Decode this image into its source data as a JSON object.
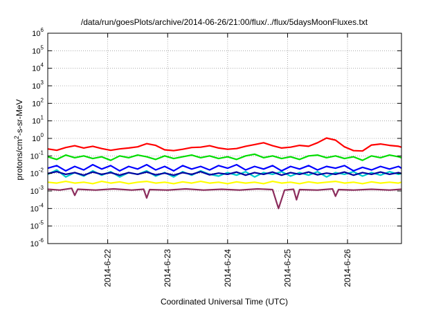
{
  "chart_data": {
    "type": "line",
    "title": "/data/run/goesPlots/archive/2014-06-26/21:00/flux/../flux/5daysMoonFluxes.txt",
    "xlabel": "Coordinated Universal Time (UTC)",
    "ylabel_prefix": "protons/cm",
    "ylabel_sup": "2",
    "ylabel_suffix": "-s-sr-MeV",
    "yscale": "log",
    "ylim": [
      1e-06,
      1000000.0
    ],
    "xlim": [
      1.0,
      6.9
    ],
    "grid": true,
    "x_ticks": [
      {
        "value": 2,
        "label": "2014-6-22"
      },
      {
        "value": 3,
        "label": "2014-6-23"
      },
      {
        "value": 4,
        "label": "2014-6-24"
      },
      {
        "value": 5,
        "label": "2014-6-25"
      },
      {
        "value": 6,
        "label": "2014-6-26"
      }
    ],
    "y_ticks": [
      {
        "exp": -6,
        "base": "10",
        "sup": "-6"
      },
      {
        "exp": -5,
        "base": "10",
        "sup": "-5"
      },
      {
        "exp": -4,
        "base": "10",
        "sup": "-4"
      },
      {
        "exp": -3,
        "base": "10",
        "sup": "-3"
      },
      {
        "exp": -2,
        "base": "10",
        "sup": "-2"
      },
      {
        "exp": -1,
        "base": "10",
        "sup": "-1"
      },
      {
        "exp": 0,
        "base": "10",
        "sup": "0"
      },
      {
        "exp": 1,
        "base": "10",
        "sup": "1"
      },
      {
        "exp": 2,
        "base": "10",
        "sup": "2"
      },
      {
        "exp": 3,
        "base": "10",
        "sup": "3"
      },
      {
        "exp": 4,
        "base": "10",
        "sup": "4"
      },
      {
        "exp": 5,
        "base": "10",
        "sup": "5"
      },
      {
        "exp": 6,
        "base": "10",
        "sup": "6"
      }
    ],
    "series": [
      {
        "color": "#ff0000",
        "values": [
          [
            1.0,
            -0.6
          ],
          [
            1.15,
            -0.68
          ],
          [
            1.3,
            -0.52
          ],
          [
            1.45,
            -0.42
          ],
          [
            1.6,
            -0.55
          ],
          [
            1.75,
            -0.45
          ],
          [
            1.9,
            -0.58
          ],
          [
            2.05,
            -0.68
          ],
          [
            2.2,
            -0.6
          ],
          [
            2.35,
            -0.55
          ],
          [
            2.5,
            -0.48
          ],
          [
            2.65,
            -0.3
          ],
          [
            2.8,
            -0.4
          ],
          [
            2.95,
            -0.65
          ],
          [
            3.1,
            -0.7
          ],
          [
            3.25,
            -0.62
          ],
          [
            3.4,
            -0.52
          ],
          [
            3.55,
            -0.5
          ],
          [
            3.7,
            -0.42
          ],
          [
            3.85,
            -0.55
          ],
          [
            4.0,
            -0.62
          ],
          [
            4.15,
            -0.58
          ],
          [
            4.3,
            -0.45
          ],
          [
            4.45,
            -0.35
          ],
          [
            4.6,
            -0.25
          ],
          [
            4.75,
            -0.42
          ],
          [
            4.9,
            -0.55
          ],
          [
            5.05,
            -0.5
          ],
          [
            5.2,
            -0.4
          ],
          [
            5.35,
            -0.45
          ],
          [
            5.5,
            -0.25
          ],
          [
            5.65,
            0.02
          ],
          [
            5.8,
            -0.1
          ],
          [
            5.95,
            -0.48
          ],
          [
            6.1,
            -0.7
          ],
          [
            6.25,
            -0.72
          ],
          [
            6.4,
            -0.38
          ],
          [
            6.55,
            -0.32
          ],
          [
            6.7,
            -0.4
          ],
          [
            6.85,
            -0.45
          ],
          [
            6.9,
            -0.5
          ]
        ]
      },
      {
        "color": "#00dd00",
        "values": [
          [
            1.0,
            -1.05
          ],
          [
            1.15,
            -1.2
          ],
          [
            1.3,
            -0.95
          ],
          [
            1.45,
            -1.1
          ],
          [
            1.6,
            -1.0
          ],
          [
            1.75,
            -1.15
          ],
          [
            1.9,
            -1.05
          ],
          [
            2.05,
            -1.25
          ],
          [
            2.2,
            -1.0
          ],
          [
            2.35,
            -1.1
          ],
          [
            2.5,
            -0.95
          ],
          [
            2.65,
            -1.05
          ],
          [
            2.8,
            -1.2
          ],
          [
            2.95,
            -1.0
          ],
          [
            3.1,
            -1.15
          ],
          [
            3.25,
            -1.05
          ],
          [
            3.4,
            -0.95
          ],
          [
            3.55,
            -1.1
          ],
          [
            3.7,
            -1.0
          ],
          [
            3.85,
            -1.15
          ],
          [
            4.0,
            -1.05
          ],
          [
            4.15,
            -1.2
          ],
          [
            4.3,
            -1.0
          ],
          [
            4.45,
            -0.9
          ],
          [
            4.6,
            -1.1
          ],
          [
            4.75,
            -1.0
          ],
          [
            4.9,
            -1.15
          ],
          [
            5.05,
            -1.05
          ],
          [
            5.2,
            -1.2
          ],
          [
            5.35,
            -1.0
          ],
          [
            5.5,
            -0.95
          ],
          [
            5.65,
            -1.1
          ],
          [
            5.8,
            -1.0
          ],
          [
            5.95,
            -1.15
          ],
          [
            6.1,
            -1.05
          ],
          [
            6.25,
            -1.25
          ],
          [
            6.4,
            -1.0
          ],
          [
            6.55,
            -1.1
          ],
          [
            6.7,
            -0.95
          ],
          [
            6.85,
            -1.05
          ],
          [
            6.9,
            -1.1
          ]
        ]
      },
      {
        "color": "#00cccc",
        "values": [
          [
            1.0,
            -2.05
          ],
          [
            1.15,
            -1.8
          ],
          [
            1.3,
            -2.2
          ],
          [
            1.45,
            -1.95
          ],
          [
            1.6,
            -2.15
          ],
          [
            1.75,
            -1.85
          ],
          [
            1.9,
            -2.1
          ],
          [
            2.05,
            -1.9
          ],
          [
            2.2,
            -2.2
          ],
          [
            2.35,
            -1.95
          ],
          [
            2.5,
            -2.05
          ],
          [
            2.65,
            -1.85
          ],
          [
            2.8,
            -2.15
          ],
          [
            2.95,
            -1.95
          ],
          [
            3.1,
            -2.2
          ],
          [
            3.25,
            -1.9
          ],
          [
            3.4,
            -2.1
          ],
          [
            3.55,
            -1.85
          ],
          [
            3.7,
            -2.05
          ],
          [
            3.85,
            -2.15
          ],
          [
            4.0,
            -1.95
          ],
          [
            4.15,
            -2.1
          ],
          [
            4.3,
            -1.9
          ],
          [
            4.45,
            -2.2
          ],
          [
            4.6,
            -1.95
          ],
          [
            4.75,
            -2.05
          ],
          [
            4.9,
            -1.9
          ],
          [
            5.05,
            -2.15
          ],
          [
            5.2,
            -1.95
          ],
          [
            5.35,
            -2.1
          ],
          [
            5.5,
            -1.9
          ],
          [
            5.65,
            -2.2
          ],
          [
            5.8,
            -1.95
          ],
          [
            5.95,
            -2.05
          ],
          [
            6.1,
            -1.9
          ],
          [
            6.25,
            -2.15
          ],
          [
            6.4,
            -1.95
          ],
          [
            6.55,
            -2.1
          ],
          [
            6.7,
            -1.9
          ],
          [
            6.85,
            -2.05
          ],
          [
            6.9,
            -2.0
          ]
        ]
      },
      {
        "color": "#0000ff",
        "values": [
          [
            1.0,
            -1.7
          ],
          [
            1.15,
            -1.55
          ],
          [
            1.3,
            -1.85
          ],
          [
            1.45,
            -1.6
          ],
          [
            1.6,
            -1.8
          ],
          [
            1.75,
            -1.5
          ],
          [
            1.9,
            -1.75
          ],
          [
            2.05,
            -1.55
          ],
          [
            2.2,
            -1.85
          ],
          [
            2.35,
            -1.6
          ],
          [
            2.5,
            -1.75
          ],
          [
            2.65,
            -1.5
          ],
          [
            2.8,
            -1.8
          ],
          [
            2.95,
            -1.6
          ],
          [
            3.1,
            -1.85
          ],
          [
            3.25,
            -1.55
          ],
          [
            3.4,
            -1.75
          ],
          [
            3.55,
            -1.6
          ],
          [
            3.7,
            -1.8
          ],
          [
            3.85,
            -1.55
          ],
          [
            4.0,
            -1.7
          ],
          [
            4.15,
            -1.5
          ],
          [
            4.3,
            -1.8
          ],
          [
            4.45,
            -1.6
          ],
          [
            4.6,
            -1.75
          ],
          [
            4.75,
            -1.55
          ],
          [
            4.9,
            -1.85
          ],
          [
            5.05,
            -1.6
          ],
          [
            5.2,
            -1.75
          ],
          [
            5.35,
            -1.55
          ],
          [
            5.5,
            -1.8
          ],
          [
            5.65,
            -1.6
          ],
          [
            5.8,
            -1.7
          ],
          [
            5.95,
            -1.55
          ],
          [
            6.1,
            -1.85
          ],
          [
            6.25,
            -1.65
          ],
          [
            6.4,
            -1.8
          ],
          [
            6.55,
            -1.6
          ],
          [
            6.7,
            -1.75
          ],
          [
            6.85,
            -1.6
          ],
          [
            6.9,
            -1.7
          ]
        ]
      },
      {
        "color": "#0000a0",
        "values": [
          [
            1.0,
            -2.0
          ],
          [
            1.15,
            -1.9
          ],
          [
            1.3,
            -2.05
          ],
          [
            1.45,
            -1.95
          ],
          [
            1.6,
            -2.1
          ],
          [
            1.75,
            -1.92
          ],
          [
            1.9,
            -2.05
          ],
          [
            2.05,
            -1.95
          ],
          [
            2.2,
            -2.1
          ],
          [
            2.35,
            -1.95
          ],
          [
            2.5,
            -2.05
          ],
          [
            2.65,
            -1.92
          ],
          [
            2.8,
            -2.08
          ],
          [
            2.95,
            -1.98
          ],
          [
            3.1,
            -2.1
          ],
          [
            3.25,
            -1.95
          ],
          [
            3.4,
            -2.05
          ],
          [
            3.55,
            -1.9
          ],
          [
            3.7,
            -2.08
          ],
          [
            3.85,
            -1.98
          ],
          [
            4.0,
            -2.05
          ],
          [
            4.15,
            -1.92
          ],
          [
            4.3,
            -2.1
          ],
          [
            4.45,
            -1.95
          ],
          [
            4.6,
            -2.05
          ],
          [
            4.75,
            -1.92
          ],
          [
            4.9,
            -2.1
          ],
          [
            5.05,
            -1.95
          ],
          [
            5.2,
            -2.05
          ],
          [
            5.35,
            -1.92
          ],
          [
            5.5,
            -2.08
          ],
          [
            5.65,
            -1.98
          ],
          [
            5.8,
            -2.05
          ],
          [
            5.95,
            -1.92
          ],
          [
            6.1,
            -2.1
          ],
          [
            6.25,
            -1.95
          ],
          [
            6.4,
            -2.05
          ],
          [
            6.55,
            -1.92
          ],
          [
            6.7,
            -2.05
          ],
          [
            6.85,
            -1.95
          ],
          [
            6.9,
            -2.0
          ]
        ]
      },
      {
        "color": "#ffff00",
        "values": [
          [
            1.0,
            -2.5
          ],
          [
            1.15,
            -2.55
          ],
          [
            1.3,
            -2.45
          ],
          [
            1.45,
            -2.55
          ],
          [
            1.6,
            -2.5
          ],
          [
            1.75,
            -2.58
          ],
          [
            1.9,
            -2.45
          ],
          [
            2.05,
            -2.55
          ],
          [
            2.2,
            -2.48
          ],
          [
            2.35,
            -2.58
          ],
          [
            2.5,
            -2.5
          ],
          [
            2.65,
            -2.45
          ],
          [
            2.8,
            -2.55
          ],
          [
            2.95,
            -2.5
          ],
          [
            3.1,
            -2.58
          ],
          [
            3.25,
            -2.48
          ],
          [
            3.4,
            -2.55
          ],
          [
            3.55,
            -2.45
          ],
          [
            3.7,
            -2.55
          ],
          [
            3.85,
            -2.5
          ],
          [
            4.0,
            -2.58
          ],
          [
            4.15,
            -2.48
          ],
          [
            4.3,
            -2.55
          ],
          [
            4.45,
            -2.5
          ],
          [
            4.6,
            -2.58
          ],
          [
            4.75,
            -2.45
          ],
          [
            4.9,
            -2.55
          ],
          [
            5.05,
            -2.5
          ],
          [
            5.2,
            -2.58
          ],
          [
            5.35,
            -2.48
          ],
          [
            5.5,
            -2.55
          ],
          [
            5.65,
            -2.5
          ],
          [
            5.8,
            -2.45
          ],
          [
            5.95,
            -2.55
          ],
          [
            6.1,
            -2.5
          ],
          [
            6.25,
            -2.58
          ],
          [
            6.4,
            -2.48
          ],
          [
            6.55,
            -2.55
          ],
          [
            6.7,
            -2.5
          ],
          [
            6.85,
            -2.55
          ],
          [
            6.9,
            -2.5
          ]
        ]
      },
      {
        "color": "#8b2c5c",
        "values": [
          [
            1.0,
            -2.9
          ],
          [
            1.2,
            -2.95
          ],
          [
            1.4,
            -2.85
          ],
          [
            1.45,
            -3.25
          ],
          [
            1.5,
            -2.9
          ],
          [
            1.8,
            -2.95
          ],
          [
            2.1,
            -2.88
          ],
          [
            2.4,
            -2.95
          ],
          [
            2.6,
            -2.9
          ],
          [
            2.65,
            -3.4
          ],
          [
            2.7,
            -2.92
          ],
          [
            3.0,
            -2.95
          ],
          [
            3.3,
            -2.88
          ],
          [
            3.6,
            -2.95
          ],
          [
            3.9,
            -2.9
          ],
          [
            4.2,
            -2.95
          ],
          [
            4.5,
            -2.88
          ],
          [
            4.75,
            -2.92
          ],
          [
            4.85,
            -4.0
          ],
          [
            4.95,
            -2.95
          ],
          [
            5.1,
            -2.9
          ],
          [
            5.15,
            -3.5
          ],
          [
            5.2,
            -2.92
          ],
          [
            5.5,
            -2.95
          ],
          [
            5.75,
            -2.88
          ],
          [
            5.8,
            -3.3
          ],
          [
            5.85,
            -2.92
          ],
          [
            6.1,
            -2.95
          ],
          [
            6.4,
            -2.9
          ],
          [
            6.7,
            -2.95
          ],
          [
            6.9,
            -2.9
          ]
        ]
      }
    ]
  }
}
